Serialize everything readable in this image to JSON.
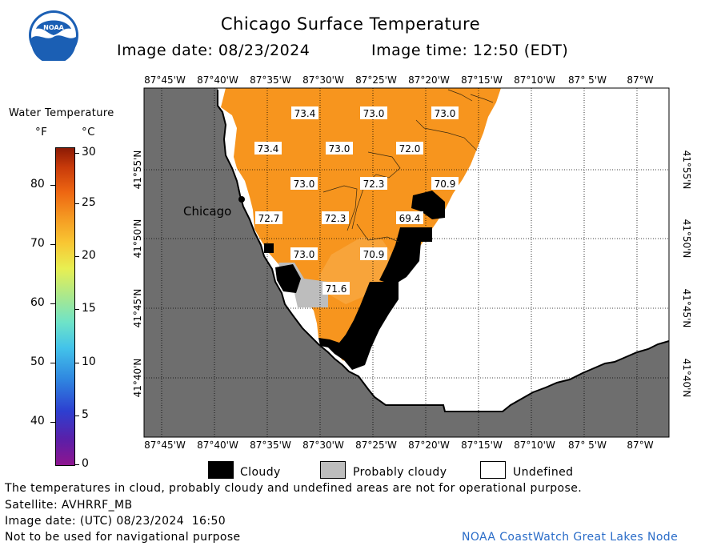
{
  "header": {
    "title": "Chicago Surface Temperature",
    "image_date": "Image date: 08/23/2024",
    "image_time": "Image time: 12:50 (EDT)"
  },
  "colorbar": {
    "title": "Water Temperature",
    "unit_f": "°F",
    "unit_c": "°C",
    "f_ticks": [
      "80",
      "70",
      "60",
      "50",
      "40"
    ],
    "c_ticks": [
      "30",
      "25",
      "20",
      "15",
      "10",
      "5",
      "0"
    ]
  },
  "map": {
    "lon_labels": [
      "87°45'W",
      "87°40'W",
      "87°35'W",
      "87°30'W",
      "87°25'W",
      "87°20'W",
      "87°15'W",
      "87°10'W",
      "87° 5'W",
      "87°W"
    ],
    "lat_labels": [
      "41°55'N",
      "41°50'N",
      "41°45'N",
      "41°40'N"
    ],
    "city_label": "Chicago",
    "temperature_labels": [
      "73.4",
      "73.0",
      "73.0",
      "73.4",
      "73.0",
      "72.0",
      "73.0",
      "72.3",
      "70.9",
      "72.7",
      "72.3",
      "69.4",
      "73.0",
      "70.9",
      "71.6"
    ],
    "colors": {
      "water": "#f7951e",
      "land": "#6e6e6e",
      "cloud": "#000000",
      "probably_cloudy": "#bdbdbd",
      "undefined": "#ffffff"
    }
  },
  "legend": {
    "cloudy": "Cloudy",
    "probably_cloudy": "Probably cloudy",
    "undefined": "Undefined"
  },
  "footer": {
    "disclaimer": "The temperatures in cloud, probably cloudy and undefined areas are not for operational purpose.",
    "satellite": "Satellite: AVHRRF_MB",
    "utc_date": "Image date: (UTC) 08/23/2024  16:50",
    "nav_warning": "Not to be used for navigational purpose",
    "credit": "NOAA CoastWatch Great Lakes Node"
  },
  "logo": {
    "text": "NOAA"
  }
}
